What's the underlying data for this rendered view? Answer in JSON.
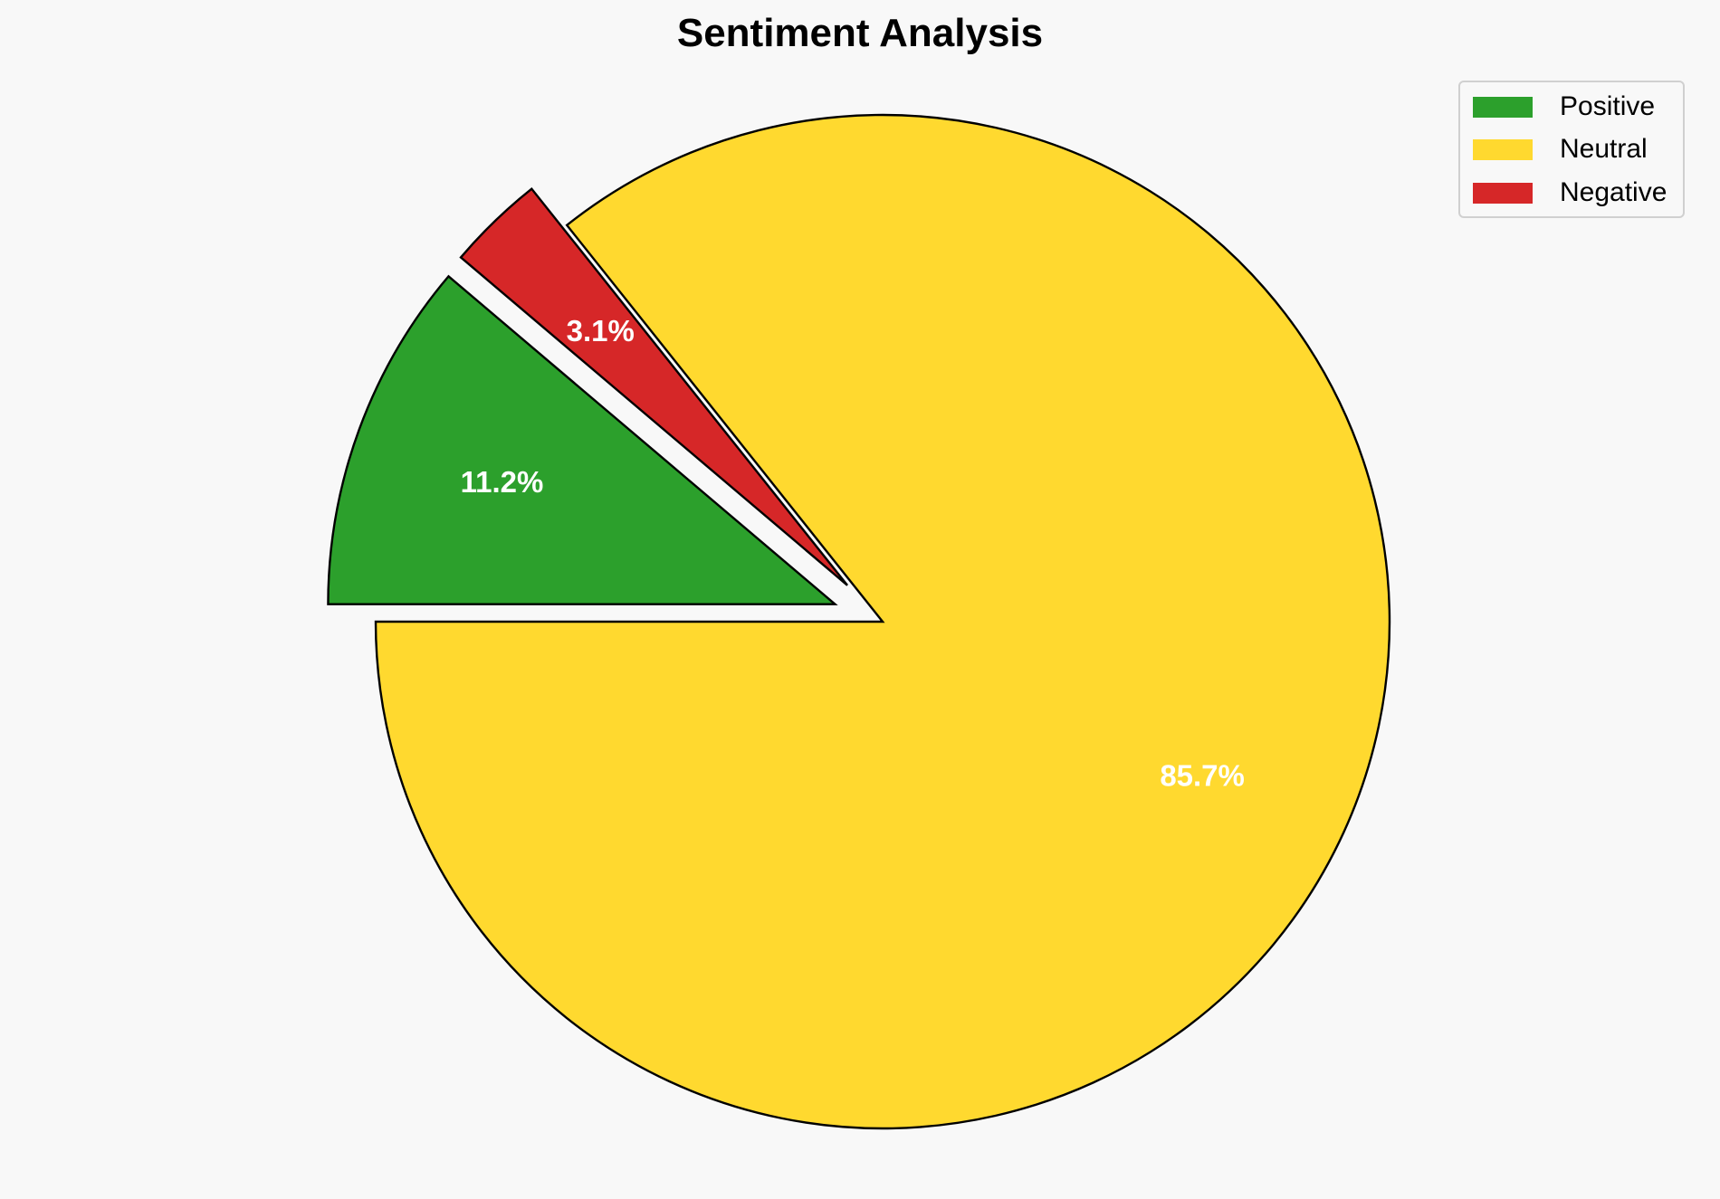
{
  "chart_data": {
    "type": "pie",
    "title": "Sentiment Analysis",
    "categories": [
      "Positive",
      "Neutral",
      "Negative"
    ],
    "values": [
      11.2,
      85.7,
      3.1
    ],
    "labels": [
      "11.2%",
      "85.7%",
      "3.1%"
    ],
    "colors": [
      "#2ca02c",
      "#ffd92f",
      "#d62728"
    ],
    "explode": [
      0.1,
      0,
      0.1
    ],
    "start_angle": 180,
    "direction": "clockwise",
    "legend_position": "top-right",
    "background": "#f8f8f8"
  }
}
